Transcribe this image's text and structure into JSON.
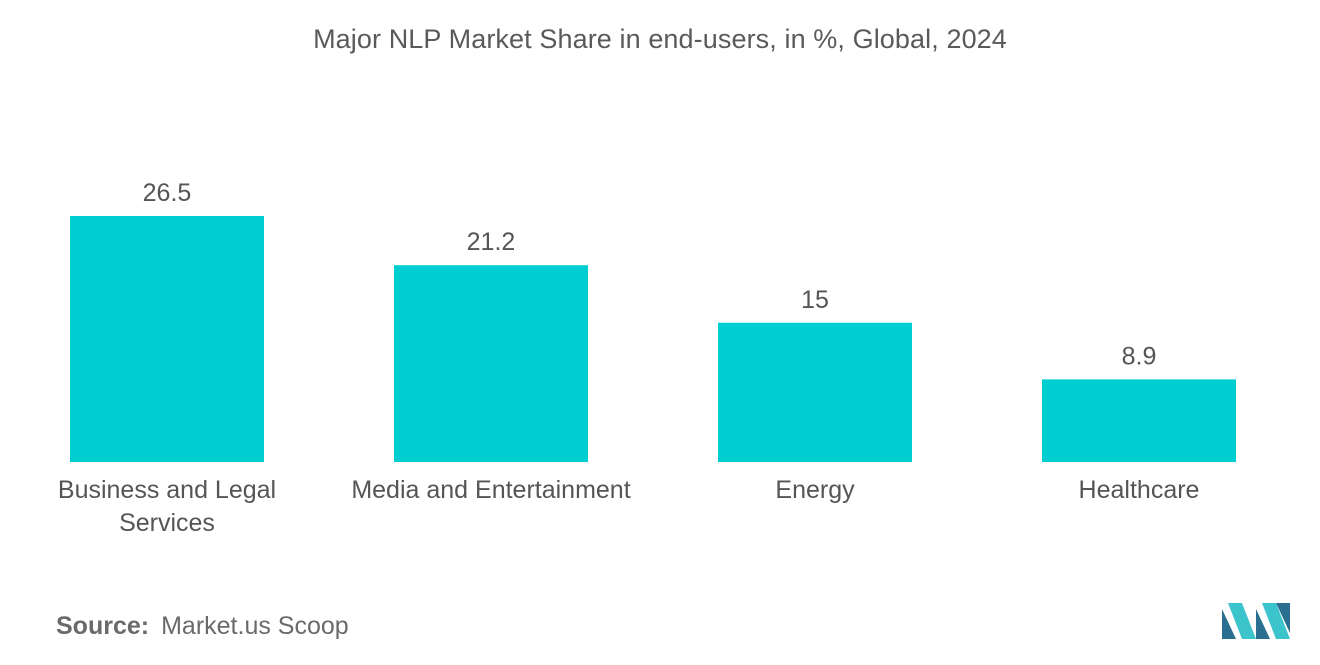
{
  "chart_data": {
    "type": "bar",
    "title": "Major NLP Market Share in end-users, in %, Global, 2024",
    "categories": [
      [
        "Business and Legal",
        "Services"
      ],
      [
        "Media and Entertainment"
      ],
      [
        "Energy"
      ],
      [
        "Healthcare"
      ]
    ],
    "values": [
      26.5,
      21.2,
      15,
      8.9
    ],
    "value_labels": [
      "26.5",
      "21.2",
      "15",
      "8.9"
    ],
    "ylim": [
      0,
      26.5
    ],
    "xlabel": "",
    "ylabel": "",
    "grid": false,
    "legend": "none"
  },
  "colors": {
    "bar": "#00CED1",
    "label_text": "#555555",
    "logo_dark": "#2a6f8f",
    "logo_light": "#3cc4cc"
  },
  "source": {
    "label": "Source:",
    "text": "Market.us Scoop"
  },
  "logo": {
    "icon": "mordor-logo-icon"
  }
}
